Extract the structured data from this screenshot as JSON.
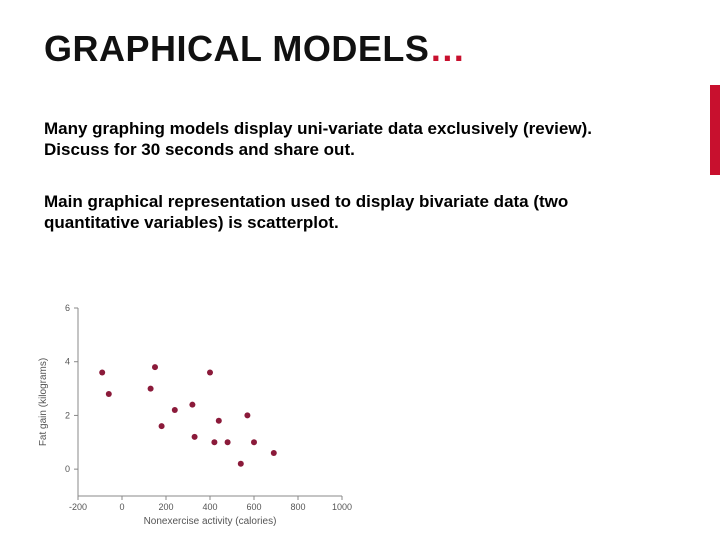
{
  "title_main": "GRAPHICAL MODELS",
  "title_dots": "…",
  "paragraph1": "Many graphing models display uni-variate data exclusively (review).  Discuss for 30 seconds and share out.",
  "paragraph2": "Main graphical representation used to display bivariate data (two quantitative variables) is scatterplot.",
  "accent_color": "#c8102e",
  "chart": {
    "type": "scatter",
    "xlabel": "Nonexercise activity (calories)",
    "ylabel": "Fat gain (kilograms)",
    "xlim": [
      -200,
      1000
    ],
    "ylim": [
      -1,
      6
    ],
    "xticks": [
      -200,
      0,
      200,
      400,
      600,
      800,
      1000
    ],
    "yticks": [
      0,
      2,
      4,
      6
    ],
    "dot_color": "#8b1a3a",
    "dot_radius": 3,
    "axis_color": "#888888",
    "tick_font_size": 9,
    "label_font_size": 10,
    "plot_bg": "#ffffff",
    "points": [
      {
        "x": -90,
        "y": 3.6
      },
      {
        "x": -60,
        "y": 2.8
      },
      {
        "x": 130,
        "y": 3.0
      },
      {
        "x": 150,
        "y": 3.8
      },
      {
        "x": 180,
        "y": 1.6
      },
      {
        "x": 240,
        "y": 2.2
      },
      {
        "x": 320,
        "y": 2.4
      },
      {
        "x": 330,
        "y": 1.2
      },
      {
        "x": 400,
        "y": 3.6
      },
      {
        "x": 420,
        "y": 1.0
      },
      {
        "x": 440,
        "y": 1.8
      },
      {
        "x": 480,
        "y": 1.0
      },
      {
        "x": 540,
        "y": 0.2
      },
      {
        "x": 570,
        "y": 2.0
      },
      {
        "x": 600,
        "y": 1.0
      },
      {
        "x": 690,
        "y": 0.6
      }
    ]
  }
}
